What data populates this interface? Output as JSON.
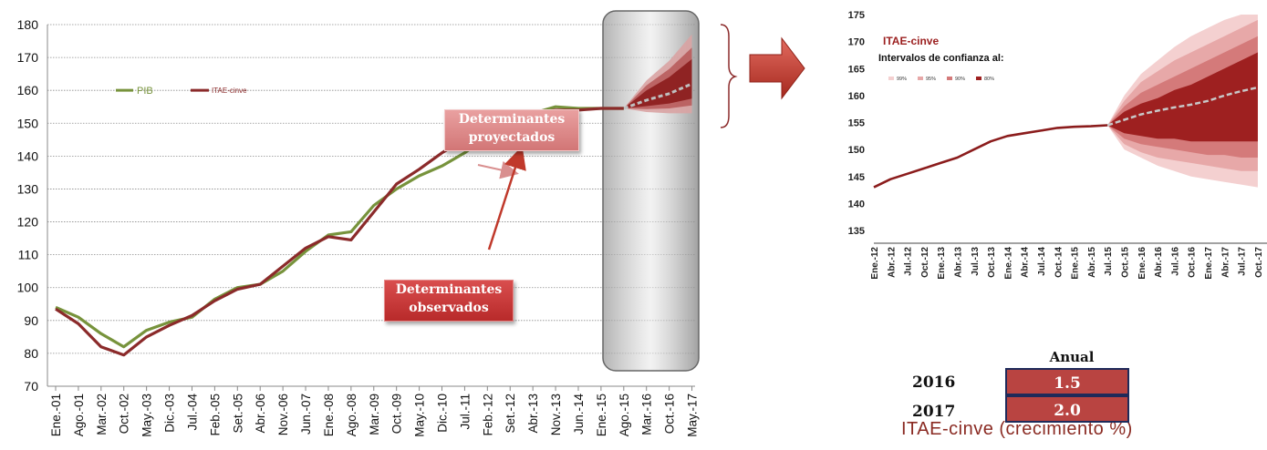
{
  "chart_data": [
    {
      "type": "line",
      "ylim": [
        70,
        180
      ],
      "yticks": [
        70,
        80,
        90,
        100,
        110,
        120,
        130,
        140,
        150,
        160,
        170,
        180
      ],
      "x_tick_labels": [
        "Ene.-01",
        "Ago.-01",
        "Mar.-02",
        "Oct.-02",
        "May.-03",
        "Dic.-03",
        "Jul.-04",
        "Feb.-05",
        "Set.-05",
        "Abr.-06",
        "Nov.-06",
        "Jun.-07",
        "Ene.-08",
        "Ago.-08",
        "Mar.-09",
        "Oct.-09",
        "May.-10",
        "Dic.-10",
        "Jul.-11",
        "Feb.-12",
        "Set.-12",
        "Abr.-13",
        "Nov.-13",
        "Jun.-14",
        "Ene.-15",
        "Ago.-15",
        "Mar.-16",
        "Oct.-16",
        "May.-17"
      ],
      "grid": "horizontal",
      "legend_position": "upper-left inside plot",
      "series": [
        {
          "name": "PIB",
          "color": "#77933c",
          "x_index": [
            0,
            1,
            2,
            3,
            4,
            5,
            6,
            7,
            8,
            9,
            10,
            11,
            12,
            13,
            14,
            15,
            16,
            17,
            18,
            19,
            20,
            21,
            22,
            23,
            24,
            25
          ],
          "values": [
            94,
            91,
            86,
            82,
            87,
            89.5,
            91,
            96.5,
            100,
            101,
            105,
            111,
            116,
            117,
            125,
            130,
            134,
            137,
            141,
            146,
            150,
            153,
            155,
            154.5,
            154.5,
            154.5
          ]
        },
        {
          "name": "ITAE-cinve",
          "color": "#8b2a2a",
          "x_index": [
            0,
            1,
            2,
            3,
            4,
            5,
            6,
            7,
            8,
            9,
            10,
            11,
            12,
            13,
            14,
            15,
            16,
            17,
            18,
            19,
            20,
            21,
            22,
            23,
            24,
            25
          ],
          "values": [
            93.5,
            89,
            82,
            79.5,
            85,
            88.5,
            91.5,
            96,
            99.5,
            101,
            106.5,
            112,
            115.5,
            114.5,
            123,
            131.5,
            136,
            141,
            145,
            147.5,
            150.5,
            153,
            154,
            154,
            154.5,
            154.5
          ]
        }
      ],
      "forecast": {
        "x_index": [
          25,
          26,
          27,
          28
        ],
        "median": [
          154.5,
          157,
          159,
          162
        ],
        "fan_color": "#8b1c1c"
      },
      "annotations": [
        "Determinantes proyectados",
        "Determinantes observados"
      ]
    },
    {
      "type": "line",
      "title": "ITAE-cinve",
      "subtitle": "Intervalos de confianza al:",
      "legend": [
        "99%",
        "95%",
        "90%",
        "80%"
      ],
      "ylim": [
        135,
        175
      ],
      "yticks": [
        135,
        140,
        145,
        150,
        155,
        160,
        165,
        170,
        175
      ],
      "x_tick_labels": [
        "Ene.-12",
        "Abr.-12",
        "Jul.-12",
        "Oct.-12",
        "Ene.-13",
        "Abr.-13",
        "Jul.-13",
        "Oct.-13",
        "Ene.-14",
        "Abr.-14",
        "Jul.-14",
        "Oct.-14",
        "Ene.-15",
        "Abr.-15",
        "Jul.-15",
        "Oct.-15",
        "Ene.-16",
        "Abr.-16",
        "Jul.-16",
        "Oct.-16",
        "Ene.-17",
        "Abr.-17",
        "Jul.-17",
        "Oct.-17"
      ],
      "series": [
        {
          "name": "ITAE-cinve",
          "color": "#8b1c1c",
          "x_index": [
            0,
            1,
            2,
            3,
            4,
            5,
            6,
            7,
            8,
            9,
            10,
            11,
            12,
            13,
            14
          ],
          "values": [
            143,
            144.5,
            145.5,
            146.5,
            147.5,
            148.5,
            150,
            151.5,
            152.5,
            153,
            153.5,
            154,
            154.2,
            154.3,
            154.5
          ]
        }
      ],
      "forecast": {
        "x_index": [
          14,
          15,
          16,
          17,
          18,
          19,
          20,
          21,
          22,
          23
        ],
        "median": [
          154.5,
          155.5,
          156.5,
          157.2,
          157.8,
          158.3,
          159,
          160,
          160.8,
          161.5
        ],
        "bands": [
          {
            "level": "99%",
            "lower": [
              154.5,
              150,
              148.5,
              147,
              146,
              145,
              144.5,
              144,
              143.5,
              143
            ],
            "upper": [
              154.5,
              160,
              164,
              166.5,
              169,
              171,
              172.5,
              174,
              175,
              175
            ]
          },
          {
            "level": "95%",
            "lower": [
              154.5,
              151,
              149.5,
              148.5,
              148,
              147.5,
              147,
              146.5,
              146,
              146
            ],
            "upper": [
              154.5,
              159,
              162.5,
              164.5,
              166.5,
              168,
              169.5,
              171,
              172.5,
              174
            ]
          },
          {
            "level": "90%",
            "lower": [
              154.5,
              152,
              151,
              150.5,
              150,
              149.5,
              149,
              149,
              148.5,
              148.5
            ],
            "upper": [
              154.5,
              158,
              160.5,
              162,
              163.5,
              165,
              166.5,
              168,
              169.5,
              171
            ]
          },
          {
            "level": "80%",
            "lower": [
              154.5,
              153,
              152.5,
              152,
              152,
              151.5,
              151.5,
              151.5,
              151.5,
              151.5
            ],
            "upper": [
              154.5,
              157,
              158.5,
              159.5,
              161,
              162,
              163.5,
              165,
              166.5,
              168
            ]
          }
        ]
      }
    }
  ],
  "growth_table": {
    "title": "ITAE-cinve (crecimiento %)",
    "column_header": "Anual",
    "rows": [
      {
        "year": "2016",
        "value": "1.5"
      },
      {
        "year": "2017",
        "value": "2.0"
      }
    ]
  },
  "callouts": {
    "projected": [
      "Determinantes",
      "proyectados"
    ],
    "observed": [
      "Determinantes",
      "observados"
    ]
  },
  "colors": {
    "pib": "#77933c",
    "itae": "#8b2a2a",
    "table_cell": "#b94441",
    "arrow": "#c0392b"
  }
}
